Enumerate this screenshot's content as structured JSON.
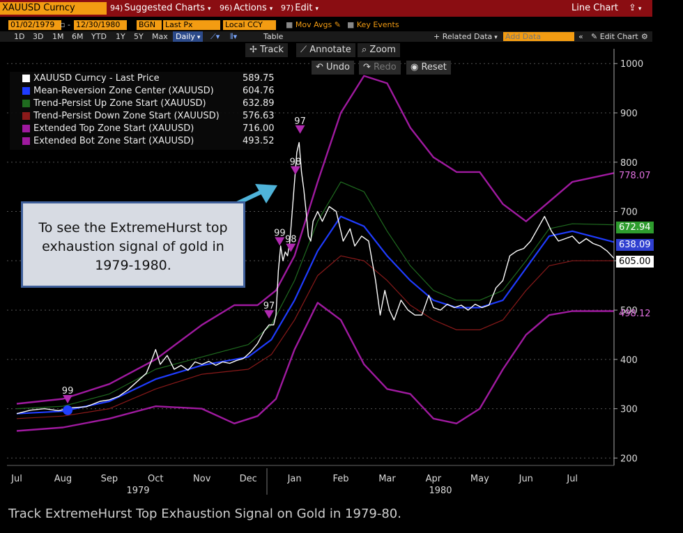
{
  "toolbar": {
    "ticker": "XAUUSD Curncy",
    "suggested_num": "94)",
    "suggested_label": "Suggested Charts",
    "actions_num": "96)",
    "actions_label": "Actions",
    "edit_num": "97)",
    "edit_label": "Edit",
    "chart_type": "Line Chart"
  },
  "bar2": {
    "start_date": "01/02/1979",
    "end_date": "12/30/1980",
    "source": "BGN",
    "field": "Last Px",
    "currency": "Local CCY",
    "mov_avgs": "Mov Avgs",
    "key_events": "Key Events"
  },
  "bar3": {
    "periods": [
      "1D",
      "3D",
      "1M",
      "6M",
      "YTD",
      "1Y",
      "5Y",
      "Max"
    ],
    "frequency": "Daily",
    "table_label": "Table",
    "related_data": "+ Related Data",
    "add_data_placeholder": "Add Data",
    "edit_chart": "Edit Chart"
  },
  "tools": {
    "track": "Track",
    "annotate": "Annotate",
    "zoom": "Zoom",
    "undo": "Undo",
    "redo": "Redo",
    "reset": "Reset"
  },
  "callout_text": "To see the ExtremeHurst top exhaustion signal of gold in 1979-1980.",
  "caption": "Track ExtremeHurst Top Exhaustion Signal on Gold in 1979-80.",
  "colors": {
    "price": "#ffffff",
    "center": "#1f3cff",
    "trend_up": "#1f6b1f",
    "trend_down": "#8b1a1a",
    "extended": "#a01aa0",
    "top_bar": "#8a0d12",
    "accent": "#f39c12"
  },
  "chart_data": {
    "type": "line",
    "title": "",
    "xlabel": "",
    "ylabel": "",
    "ylim": [
      185,
      1030
    ],
    "y_ticks": [
      200,
      300,
      400,
      500,
      600,
      700,
      800,
      900,
      1000
    ],
    "x_ticks": [
      "Jul",
      "Aug",
      "Sep",
      "Oct",
      "Nov",
      "Dec",
      "Jan",
      "Feb",
      "Mar",
      "Apr",
      "May",
      "Jun",
      "Jul"
    ],
    "year_labels": [
      "1979",
      "1980"
    ],
    "x_index_range": [
      0,
      12.9
    ],
    "legend_placement": "top-left",
    "series": [
      {
        "key": "price",
        "name": "XAUUSD Curncy - Last Price",
        "value": "589.75",
        "tag": "605.00",
        "points": [
          [
            0,
            290
          ],
          [
            0.3,
            297
          ],
          [
            0.6,
            300
          ],
          [
            0.9,
            296
          ],
          [
            1.2,
            302
          ],
          [
            1.5,
            304
          ],
          [
            1.8,
            315
          ],
          [
            2.0,
            318
          ],
          [
            2.2,
            325
          ],
          [
            2.4,
            338
          ],
          [
            2.6,
            355
          ],
          [
            2.8,
            372
          ],
          [
            2.9,
            395
          ],
          [
            3.0,
            420
          ],
          [
            3.1,
            390
          ],
          [
            3.25,
            408
          ],
          [
            3.4,
            380
          ],
          [
            3.55,
            388
          ],
          [
            3.7,
            378
          ],
          [
            3.85,
            395
          ],
          [
            4.0,
            390
          ],
          [
            4.15,
            396
          ],
          [
            4.3,
            388
          ],
          [
            4.45,
            395
          ],
          [
            4.6,
            392
          ],
          [
            4.75,
            398
          ],
          [
            4.9,
            402
          ],
          [
            5.05,
            415
          ],
          [
            5.2,
            432
          ],
          [
            5.35,
            458
          ],
          [
            5.45,
            470
          ],
          [
            5.55,
            470
          ],
          [
            5.6,
            490
          ],
          [
            5.65,
            580
          ],
          [
            5.7,
            630
          ],
          [
            5.75,
            600
          ],
          [
            5.8,
            618
          ],
          [
            5.85,
            610
          ],
          [
            5.9,
            640
          ],
          [
            5.95,
            700
          ],
          [
            6.0,
            760
          ],
          [
            6.05,
            820
          ],
          [
            6.1,
            840
          ],
          [
            6.15,
            780
          ],
          [
            6.2,
            745
          ],
          [
            6.25,
            700
          ],
          [
            6.3,
            650
          ],
          [
            6.35,
            640
          ],
          [
            6.4,
            680
          ],
          [
            6.5,
            700
          ],
          [
            6.6,
            680
          ],
          [
            6.75,
            710
          ],
          [
            6.9,
            700
          ],
          [
            7.05,
            640
          ],
          [
            7.2,
            665
          ],
          [
            7.3,
            630
          ],
          [
            7.45,
            650
          ],
          [
            7.6,
            640
          ],
          [
            7.75,
            560
          ],
          [
            7.85,
            490
          ],
          [
            7.95,
            540
          ],
          [
            8.05,
            500
          ],
          [
            8.15,
            480
          ],
          [
            8.3,
            520
          ],
          [
            8.45,
            500
          ],
          [
            8.6,
            490
          ],
          [
            8.75,
            490
          ],
          [
            8.9,
            530
          ],
          [
            9.0,
            505
          ],
          [
            9.15,
            500
          ],
          [
            9.3,
            512
          ],
          [
            9.45,
            505
          ],
          [
            9.6,
            510
          ],
          [
            9.75,
            500
          ],
          [
            9.9,
            512
          ],
          [
            10.05,
            505
          ],
          [
            10.2,
            510
          ],
          [
            10.35,
            545
          ],
          [
            10.5,
            560
          ],
          [
            10.65,
            610
          ],
          [
            10.8,
            620
          ],
          [
            10.95,
            625
          ],
          [
            11.1,
            640
          ],
          [
            11.25,
            665
          ],
          [
            11.4,
            690
          ],
          [
            11.55,
            660
          ],
          [
            11.7,
            640
          ],
          [
            11.85,
            645
          ],
          [
            12.0,
            650
          ],
          [
            12.15,
            635
          ],
          [
            12.3,
            645
          ],
          [
            12.45,
            635
          ],
          [
            12.6,
            630
          ],
          [
            12.75,
            620
          ],
          [
            12.9,
            605
          ]
        ]
      },
      {
        "key": "center",
        "name": "Mean-Reversion Zone Center (XAUUSD)",
        "value": "604.76",
        "tag": "638.09",
        "points": [
          [
            0,
            290
          ],
          [
            1,
            295
          ],
          [
            2,
            315
          ],
          [
            3,
            360
          ],
          [
            4,
            388
          ],
          [
            5,
            405
          ],
          [
            5.5,
            440
          ],
          [
            6,
            520
          ],
          [
            6.5,
            620
          ],
          [
            7,
            690
          ],
          [
            7.5,
            670
          ],
          [
            8,
            610
          ],
          [
            8.5,
            560
          ],
          [
            9,
            520
          ],
          [
            9.5,
            505
          ],
          [
            10,
            505
          ],
          [
            10.5,
            520
          ],
          [
            11,
            585
          ],
          [
            11.5,
            650
          ],
          [
            12,
            660
          ],
          [
            12.9,
            638
          ]
        ]
      },
      {
        "key": "trend_up",
        "name": "Trend-Persist Up Zone Start (XAUUSD)",
        "value": "632.89",
        "tag": "672.94",
        "points": [
          [
            0,
            300
          ],
          [
            1,
            305
          ],
          [
            2,
            330
          ],
          [
            3,
            380
          ],
          [
            4,
            405
          ],
          [
            5,
            430
          ],
          [
            5.5,
            470
          ],
          [
            6,
            560
          ],
          [
            6.5,
            680
          ],
          [
            7,
            760
          ],
          [
            7.5,
            740
          ],
          [
            8,
            660
          ],
          [
            8.5,
            590
          ],
          [
            9,
            540
          ],
          [
            9.5,
            520
          ],
          [
            10,
            520
          ],
          [
            10.5,
            540
          ],
          [
            11,
            600
          ],
          [
            11.5,
            665
          ],
          [
            12,
            675
          ],
          [
            12.9,
            673
          ]
        ]
      },
      {
        "key": "trend_down",
        "name": "Trend-Persist Down Zone Start (XAUUSD)",
        "value": "576.63",
        "tag": "",
        "points": [
          [
            0,
            280
          ],
          [
            1,
            285
          ],
          [
            2,
            300
          ],
          [
            3,
            340
          ],
          [
            4,
            370
          ],
          [
            5,
            380
          ],
          [
            5.5,
            410
          ],
          [
            6,
            480
          ],
          [
            6.5,
            570
          ],
          [
            7,
            610
          ],
          [
            7.5,
            600
          ],
          [
            8,
            560
          ],
          [
            8.5,
            510
          ],
          [
            9,
            480
          ],
          [
            9.5,
            460
          ],
          [
            10,
            460
          ],
          [
            10.5,
            480
          ],
          [
            11,
            540
          ],
          [
            11.5,
            590
          ],
          [
            12,
            600
          ],
          [
            12.9,
            600
          ]
        ]
      },
      {
        "key": "ext_top",
        "name": "Extended Top Zone Start (XAUUSD)",
        "value": "716.00",
        "tag": "778.07",
        "points": [
          [
            0,
            310
          ],
          [
            1,
            320
          ],
          [
            2,
            350
          ],
          [
            3,
            400
          ],
          [
            4,
            470
          ],
          [
            4.7,
            510
          ],
          [
            5.2,
            510
          ],
          [
            5.6,
            540
          ],
          [
            6,
            610
          ],
          [
            6.5,
            760
          ],
          [
            7,
            900
          ],
          [
            7.5,
            975
          ],
          [
            8,
            960
          ],
          [
            8.5,
            870
          ],
          [
            9,
            810
          ],
          [
            9.5,
            780
          ],
          [
            10,
            780
          ],
          [
            10.5,
            715
          ],
          [
            11,
            680
          ],
          [
            11.5,
            720
          ],
          [
            12,
            760
          ],
          [
            12.9,
            778
          ]
        ]
      },
      {
        "key": "ext_bot",
        "name": "Extended Bot Zone Start (XAUUSD)",
        "value": "493.52",
        "tag": "498.12",
        "points": [
          [
            0,
            255
          ],
          [
            1,
            262
          ],
          [
            2,
            280
          ],
          [
            3,
            305
          ],
          [
            4,
            300
          ],
          [
            4.7,
            270
          ],
          [
            5.2,
            285
          ],
          [
            5.6,
            320
          ],
          [
            6,
            420
          ],
          [
            6.5,
            515
          ],
          [
            7,
            480
          ],
          [
            7.5,
            390
          ],
          [
            8,
            340
          ],
          [
            8.5,
            330
          ],
          [
            9,
            280
          ],
          [
            9.5,
            270
          ],
          [
            10,
            300
          ],
          [
            10.5,
            380
          ],
          [
            11,
            450
          ],
          [
            11.5,
            490
          ],
          [
            12,
            498
          ],
          [
            12.9,
            498
          ]
        ]
      }
    ],
    "signals": [
      {
        "label": "99",
        "x": 1.1,
        "y": 308
      },
      {
        "label": "97",
        "x": 5.45,
        "y": 480
      },
      {
        "label": "99",
        "x": 5.68,
        "y": 628
      },
      {
        "label": "98",
        "x": 5.92,
        "y": 615
      },
      {
        "label": "98",
        "x": 6.02,
        "y": 772
      },
      {
        "label": "97",
        "x": 6.12,
        "y": 855
      }
    ]
  }
}
